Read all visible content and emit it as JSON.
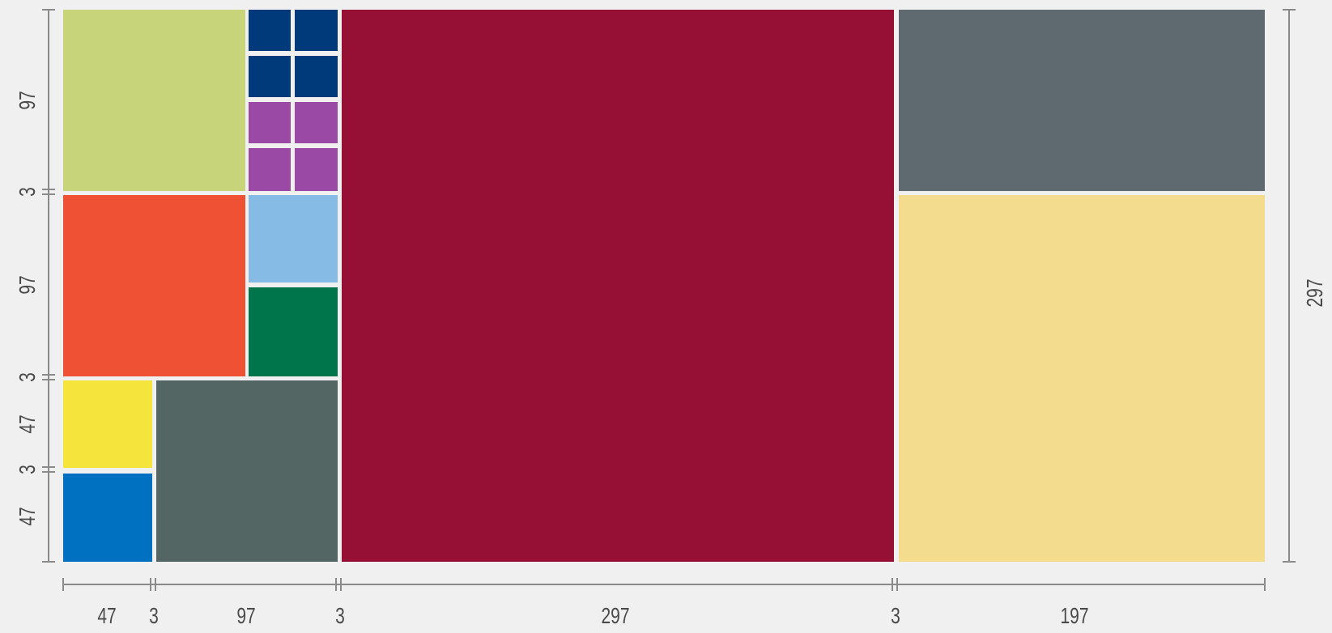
{
  "palette": {
    "lime": "#c8d47a",
    "navy": "#003a7a",
    "purple": "#9a4aa4",
    "sky": "#86bbe6",
    "green": "#00744a",
    "orange": "#ef5134",
    "yellow": "#f5e43b",
    "blue": "#0070c0",
    "slate_green": "#536664",
    "crimson": "#951034",
    "slate": "#5f6a70",
    "sand": "#f4dc8e"
  },
  "dimensions": {
    "bottom": [
      "47",
      "3",
      "97",
      "3",
      "297",
      "3",
      "197"
    ],
    "left": [
      "97",
      "3",
      "97",
      "3",
      "47",
      "3",
      "47"
    ],
    "right": [
      "297"
    ]
  }
}
